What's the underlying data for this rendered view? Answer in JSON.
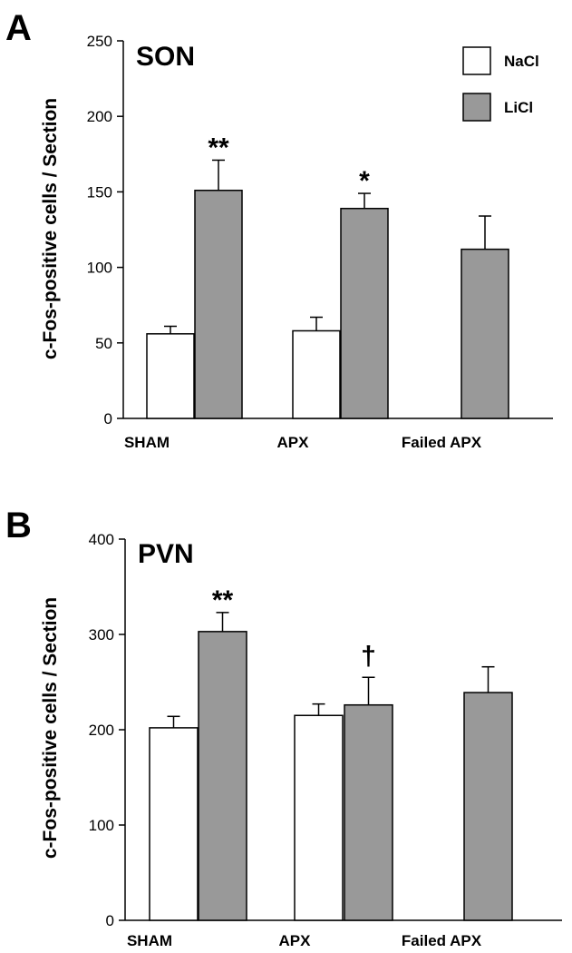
{
  "colors": {
    "nacl": "#ffffff",
    "licl": "#999999",
    "stroke": "#000000"
  },
  "chart_data": [
    {
      "type": "bar",
      "panel": "A",
      "title": "SON",
      "ylabel": "c-Fos-positive cells / Section",
      "xlabel": "",
      "ylim": [
        0,
        250
      ],
      "yticks": [
        0,
        50,
        100,
        150,
        200,
        250
      ],
      "categories": [
        "SHAM",
        "APX",
        "Failed APX"
      ],
      "legend": [
        "NaCl",
        "LiCl"
      ],
      "series": [
        {
          "name": "NaCl",
          "values": [
            56,
            58,
            null
          ],
          "errors": [
            5,
            9,
            null
          ]
        },
        {
          "name": "LiCl",
          "values": [
            151,
            139,
            112
          ],
          "errors": [
            20,
            10,
            22
          ]
        }
      ],
      "annotations": [
        {
          "category": "SHAM",
          "series": "LiCl",
          "text": "**"
        },
        {
          "category": "APX",
          "series": "LiCl",
          "text": "*"
        }
      ]
    },
    {
      "type": "bar",
      "panel": "B",
      "title": "PVN",
      "ylabel": "c-Fos-positive cells / Section",
      "xlabel": "",
      "ylim": [
        0,
        400
      ],
      "yticks": [
        0,
        100,
        200,
        300,
        400
      ],
      "categories": [
        "SHAM",
        "APX",
        "Failed APX"
      ],
      "series": [
        {
          "name": "NaCl",
          "values": [
            202,
            215,
            null
          ],
          "errors": [
            12,
            12,
            null
          ]
        },
        {
          "name": "LiCl",
          "values": [
            303,
            226,
            239
          ],
          "errors": [
            20,
            29,
            27
          ]
        }
      ],
      "annotations": [
        {
          "category": "SHAM",
          "series": "LiCl",
          "text": "**"
        },
        {
          "category": "APX",
          "series": "LiCl",
          "text": "†"
        }
      ]
    }
  ]
}
